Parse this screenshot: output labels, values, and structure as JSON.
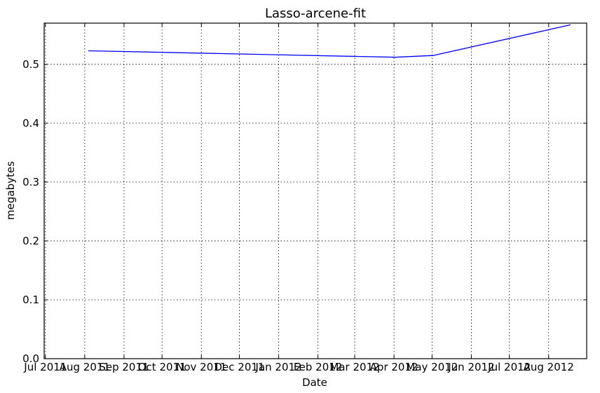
{
  "chart_data": {
    "type": "line",
    "title": "Lasso-arcene-fit",
    "xlabel": "Date",
    "ylabel": "megabytes",
    "x_type": "date",
    "xlim": [
      "2011-06-30",
      "2012-08-31"
    ],
    "ylim": [
      0,
      0.57
    ],
    "grid": true,
    "x_ticks": [
      "2011-07-01",
      "2011-08-01",
      "2011-09-01",
      "2011-10-01",
      "2011-11-01",
      "2011-12-01",
      "2012-01-01",
      "2012-02-01",
      "2012-03-01",
      "2012-04-01",
      "2012-05-01",
      "2012-06-01",
      "2012-07-01",
      "2012-08-01"
    ],
    "x_tick_labels": [
      "Jul 2011",
      "Aug 2011",
      "Sep 2011",
      "Oct 2011",
      "Nov 2011",
      "Dec 2011",
      "Jan 2012",
      "Feb 2012",
      "Mar 2012",
      "Apr 2012",
      "May 2012",
      "Jun 2012",
      "Jul 2012",
      "Aug 2012"
    ],
    "y_ticks": [
      0.0,
      0.1,
      0.2,
      0.3,
      0.4,
      0.5
    ],
    "y_tick_labels": [
      "0.0",
      "0.1",
      "0.2",
      "0.3",
      "0.4",
      "0.5"
    ],
    "series": [
      {
        "color": "#0000ff",
        "x": [
          "2011-08-04",
          "2012-04-02",
          "2012-05-02",
          "2012-08-18"
        ],
        "y": [
          0.523,
          0.512,
          0.515,
          0.567
        ]
      }
    ]
  }
}
